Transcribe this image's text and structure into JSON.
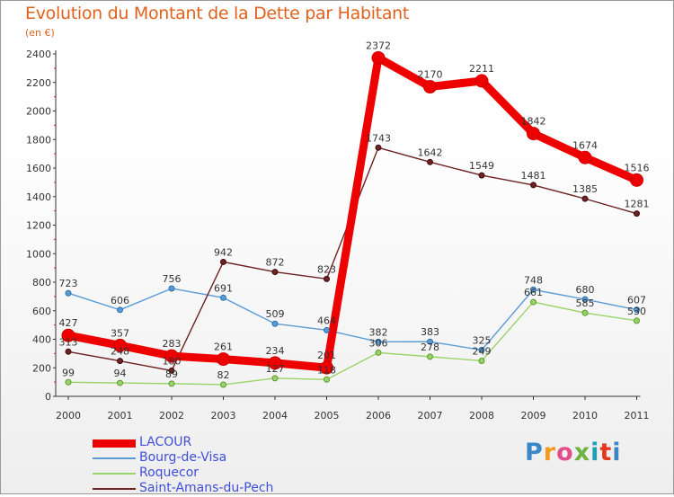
{
  "title": "Evolution du Montant de la Dette par Habitant",
  "subtitle": "(en €)",
  "logo_text": "Proxiti",
  "chart_data": {
    "type": "line",
    "title": "Evolution du Montant de la Dette par Habitant",
    "ylabel": "(en €)",
    "xlabel": "",
    "categories": [
      "2000",
      "2001",
      "2002",
      "2003",
      "2004",
      "2005",
      "2006",
      "2007",
      "2008",
      "2009",
      "2010",
      "2011"
    ],
    "ylim": [
      0,
      2400
    ],
    "yticks": [
      0,
      200,
      400,
      600,
      800,
      1000,
      1200,
      1400,
      1600,
      1800,
      2000,
      2200,
      2400
    ],
    "grid": false,
    "legend_position": "bottom-left",
    "series": [
      {
        "name": "LACOUR",
        "color": "#ee0000",
        "values": [
          427,
          357,
          283,
          261,
          234,
          201,
          2372,
          2170,
          2211,
          1842,
          1674,
          1516
        ]
      },
      {
        "name": "Bourg-de-Visa",
        "color": "#5b9bd5",
        "values": [
          723,
          606,
          756,
          691,
          509,
          464,
          382,
          383,
          325,
          748,
          680,
          607
        ]
      },
      {
        "name": "Roquecor",
        "color": "#9ad36a",
        "values": [
          99,
          94,
          89,
          82,
          127,
          118,
          306,
          278,
          249,
          661,
          585,
          530
        ]
      },
      {
        "name": "Saint-Amans-du-Pech",
        "color": "#6e2222",
        "values": [
          313,
          248,
          180,
          942,
          872,
          823,
          1743,
          1642,
          1549,
          1481,
          1385,
          1281
        ]
      }
    ]
  }
}
